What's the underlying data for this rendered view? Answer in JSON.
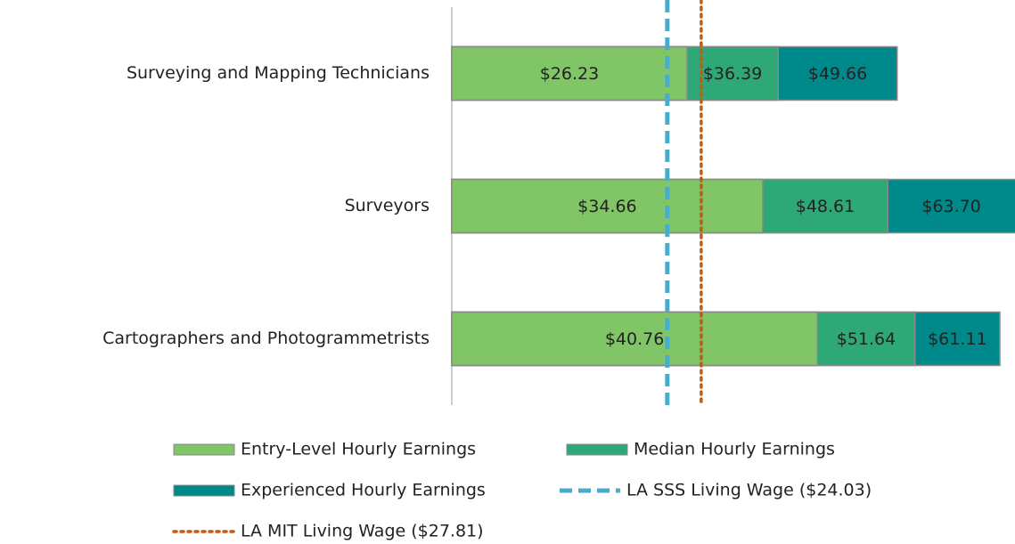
{
  "chart_data": {
    "type": "bar",
    "orientation": "horizontal",
    "overlap": true,
    "categories": [
      "Surveying and Mapping Technicians",
      "Surveyors",
      "Cartographers and Photogrammetrists"
    ],
    "series": [
      {
        "name": "Entry-Level Hourly Earnings",
        "color": "#80c566",
        "values": [
          26.23,
          34.66,
          40.76
        ],
        "value_labels": [
          "$26.23",
          "$34.66",
          "$40.76"
        ]
      },
      {
        "name": "Median Hourly Earnings",
        "color": "#2fa878",
        "values": [
          36.39,
          48.61,
          51.64
        ],
        "value_labels": [
          "$36.39",
          "$48.61",
          "$51.64"
        ]
      },
      {
        "name": "Experienced Hourly Earnings",
        "color": "#00898a",
        "values": [
          49.66,
          63.7,
          61.11
        ],
        "value_labels": [
          "$49.66",
          "$63.70",
          "$61.11"
        ]
      }
    ],
    "reference_lines": [
      {
        "name": "LA SSS Living Wage ($24.03)",
        "value": 24.03,
        "color": "#4aaccc",
        "style": "dashed"
      },
      {
        "name": "LA MIT Living Wage ($27.81)",
        "value": 27.81,
        "color": "#c55a11",
        "style": "dotted"
      }
    ],
    "xlim": [
      0,
      62.8
    ],
    "legend": "bottom"
  }
}
